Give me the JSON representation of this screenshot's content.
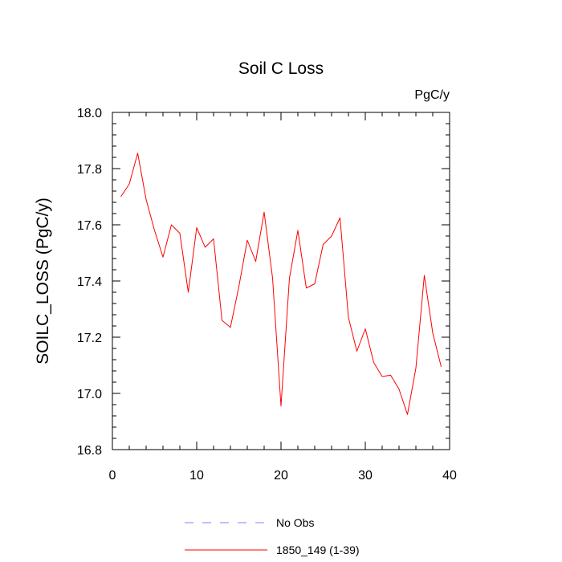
{
  "chart_data": {
    "type": "line",
    "title": "Soil C Loss",
    "units_label": "PgC/y",
    "xlabel": "",
    "ylabel": "SOILC_LOSS  (PgC/y)",
    "xlim": [
      0,
      40
    ],
    "ylim": [
      16.8,
      18.0
    ],
    "x_ticks": [
      0,
      10,
      20,
      30,
      40
    ],
    "y_ticks": [
      16.8,
      17.0,
      17.2,
      17.4,
      17.6,
      17.8,
      18.0
    ],
    "y_tick_labels": [
      "16.8",
      "17.0",
      "17.2",
      "17.4",
      "17.6",
      "17.8",
      "18.0"
    ],
    "grid": false,
    "legend_position": "bottom-center",
    "series": [
      {
        "name": "1850_149 (1-39)",
        "color": "#ff0000",
        "style": "solid",
        "x": [
          1,
          2,
          3,
          4,
          5,
          6,
          7,
          8,
          9,
          10,
          11,
          12,
          13,
          14,
          15,
          16,
          17,
          18,
          19,
          20,
          21,
          22,
          23,
          24,
          25,
          26,
          27,
          28,
          29,
          30,
          31,
          32,
          33,
          34,
          35,
          36,
          37,
          38,
          39
        ],
        "values": [
          17.7,
          17.745,
          17.855,
          17.69,
          17.58,
          17.485,
          17.6,
          17.57,
          17.36,
          17.59,
          17.52,
          17.55,
          17.26,
          17.235,
          17.38,
          17.545,
          17.47,
          17.645,
          17.41,
          16.955,
          17.41,
          17.58,
          17.375,
          17.39,
          17.53,
          17.56,
          17.625,
          17.27,
          17.15,
          17.23,
          17.11,
          17.06,
          17.065,
          17.015,
          16.925,
          17.09,
          17.42,
          17.215,
          17.095
        ]
      }
    ],
    "legend": [
      {
        "label": "No Obs",
        "color": "#8080ff",
        "style": "dashed"
      },
      {
        "label": "1850_149 (1-39)",
        "color": "#ff0000",
        "style": "solid"
      }
    ]
  }
}
